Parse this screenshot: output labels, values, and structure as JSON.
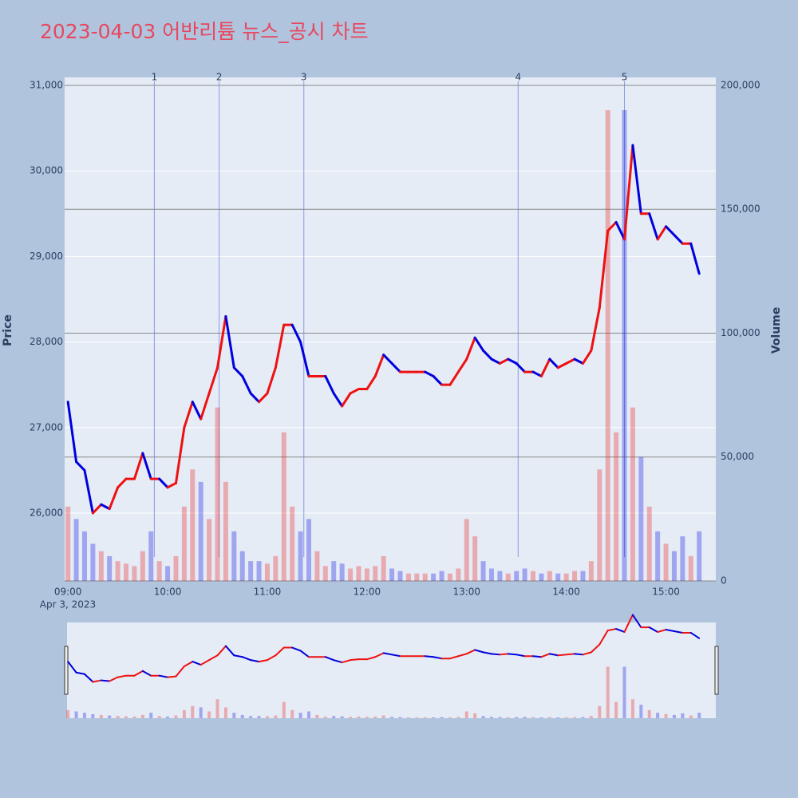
{
  "chart_data": {
    "type": "price-volume",
    "title": "2023-04-03 어반리튬 뉴스_공시 차트",
    "date_label": "Apr 3, 2023",
    "y_label": "Price",
    "y2_label": "Volume",
    "x": [
      "09:00",
      "09:05",
      "09:10",
      "09:15",
      "09:20",
      "09:25",
      "09:30",
      "09:35",
      "09:40",
      "09:45",
      "09:50",
      "09:55",
      "10:00",
      "10:05",
      "10:10",
      "10:15",
      "10:20",
      "10:25",
      "10:30",
      "10:35",
      "10:40",
      "10:45",
      "10:50",
      "10:55",
      "11:00",
      "11:05",
      "11:10",
      "11:15",
      "11:20",
      "11:25",
      "11:30",
      "11:35",
      "11:40",
      "11:45",
      "11:50",
      "11:55",
      "12:00",
      "12:05",
      "12:10",
      "12:15",
      "12:20",
      "12:25",
      "12:30",
      "12:35",
      "12:40",
      "12:45",
      "12:50",
      "12:55",
      "13:00",
      "13:05",
      "13:10",
      "13:15",
      "13:20",
      "13:25",
      "13:30",
      "13:35",
      "13:40",
      "13:45",
      "13:50",
      "13:55",
      "14:00",
      "14:05",
      "14:10",
      "14:15",
      "14:20",
      "14:25",
      "14:30",
      "14:35",
      "14:40",
      "14:45",
      "14:50",
      "14:55",
      "15:00",
      "15:05",
      "15:10",
      "15:15",
      "15:20"
    ],
    "series": [
      {
        "name": "Price",
        "values": [
          27300,
          26600,
          26500,
          26000,
          26100,
          26050,
          26300,
          26400,
          26400,
          26700,
          26400,
          26400,
          26300,
          26350,
          27000,
          27300,
          27100,
          27400,
          27700,
          28300,
          27700,
          27600,
          27400,
          27300,
          27400,
          27700,
          28200,
          28200,
          28000,
          27600,
          27600,
          27600,
          27400,
          27250,
          27400,
          27450,
          27450,
          27600,
          27850,
          27750,
          27650,
          27650,
          27650,
          27650,
          27600,
          27500,
          27500,
          27650,
          27800,
          28050,
          27900,
          27800,
          27750,
          27800,
          27750,
          27650,
          27650,
          27600,
          27800,
          27700,
          27750,
          27800,
          27750,
          27900,
          28400,
          29300,
          29400,
          29200,
          30300,
          29500,
          29500,
          29200,
          29350,
          29250,
          29150,
          29150,
          28800
        ]
      },
      {
        "name": "Volume",
        "axis": "y2",
        "values": [
          30000,
          25000,
          20000,
          15000,
          12000,
          10000,
          8000,
          7000,
          6000,
          12000,
          20000,
          8000,
          6000,
          10000,
          30000,
          45000,
          40000,
          25000,
          70000,
          40000,
          20000,
          12000,
          8000,
          8000,
          7000,
          10000,
          60000,
          30000,
          20000,
          25000,
          12000,
          6000,
          8000,
          7000,
          5000,
          6000,
          5000,
          6000,
          10000,
          5000,
          4000,
          3000,
          3000,
          3000,
          3000,
          4000,
          3000,
          5000,
          25000,
          18000,
          8000,
          5000,
          4000,
          3000,
          4000,
          5000,
          4000,
          3000,
          4000,
          3000,
          3000,
          4000,
          4000,
          8000,
          45000,
          190000,
          60000,
          190000,
          70000,
          50000,
          30000,
          20000,
          15000,
          12000,
          18000,
          10000,
          20000
        ]
      }
    ],
    "up_color": "#ee1111",
    "down_color": "#0000dd",
    "xlim": [
      "08:58",
      "15:30"
    ],
    "xticks": [
      "09:00",
      "10:00",
      "11:00",
      "12:00",
      "13:00",
      "14:00",
      "15:00"
    ],
    "ylim": [
      25207,
      31093
    ],
    "yticks": [
      {
        "value": 26000,
        "label": "26,000"
      },
      {
        "value": 27000,
        "label": "27,000"
      },
      {
        "value": 28000,
        "label": "28,000"
      },
      {
        "value": 29000,
        "label": "29,000"
      },
      {
        "value": 30000,
        "label": "30,000"
      },
      {
        "value": 31000,
        "label": "31,000"
      }
    ],
    "y2lim": [
      0,
      203220
    ],
    "y2ticks": [
      0,
      {
        "value": 50000,
        "label": "50,000"
      },
      {
        "value": 100000,
        "label": "100,000"
      },
      {
        "value": 150000,
        "label": "150,000"
      },
      {
        "value": 200000,
        "label": "200,000"
      }
    ],
    "markers": [
      {
        "x": "09:52",
        "label": "1"
      },
      {
        "x": "10:31",
        "label": "2"
      },
      {
        "x": "11:22",
        "label": "3"
      },
      {
        "x": "13:31",
        "label": "4"
      },
      {
        "x": "14:35",
        "label": "5"
      }
    ],
    "grid": true
  }
}
